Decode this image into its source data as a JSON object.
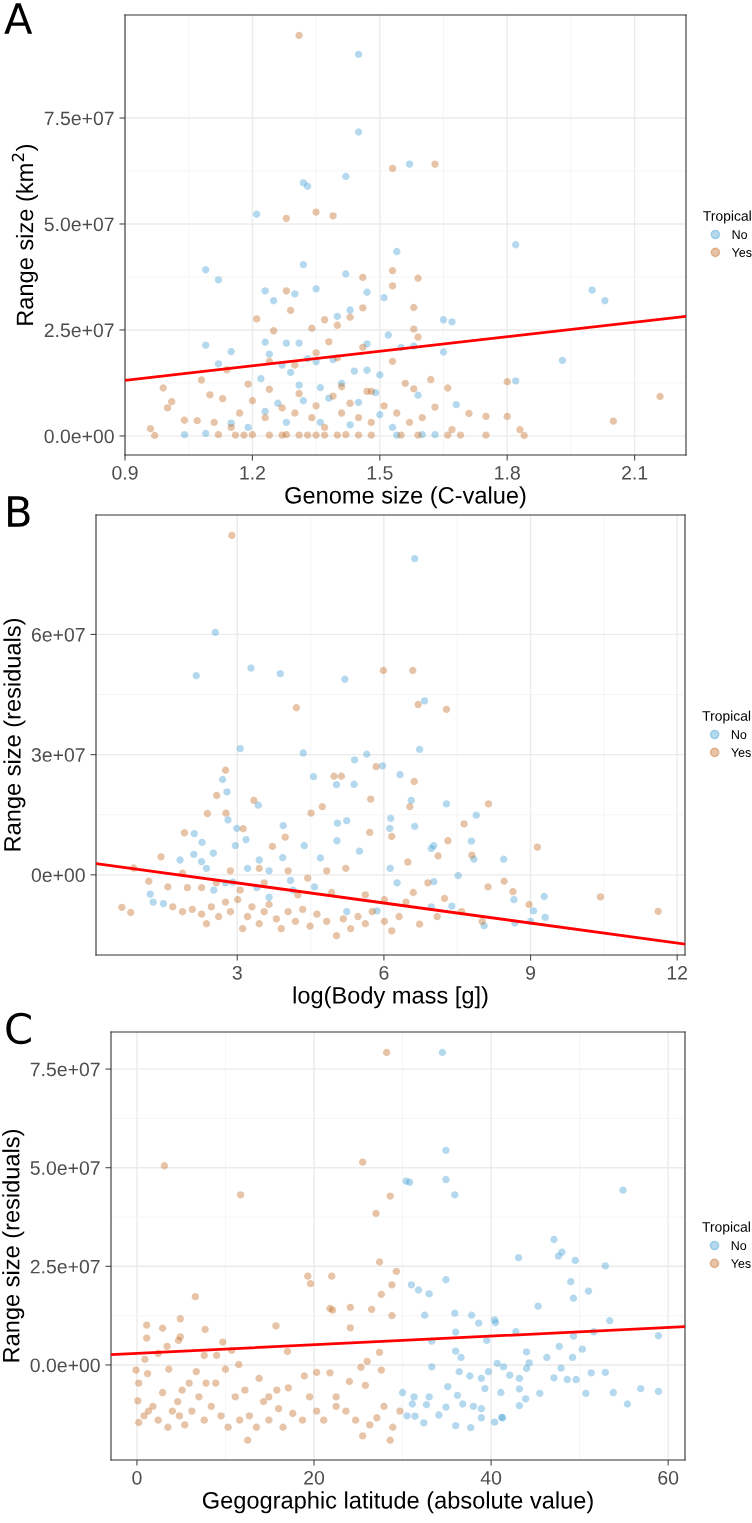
{
  "chart_data": [
    {
      "type": "scatter",
      "annotations": [
        "A"
      ],
      "xlabel": "Genome size (C-value)",
      "ylabel": "Range size (km$^{2}$)",
      "legend_title": "Tropical",
      "legend": "right",
      "grid": true,
      "marker": "circle",
      "xlim": [
        0.9,
        2.221
      ],
      "xticks": [
        0.9,
        1.2,
        1.5,
        1.8,
        2.1
      ],
      "ylim": [
        -4500000,
        99300000
      ],
      "yticks": [
        {
          "value": 0,
          "label": "0.0e+00"
        },
        {
          "value": 25000000,
          "label": "2.5e+07"
        },
        {
          "value": 50000000,
          "label": "5.0e+07"
        },
        {
          "value": 75000000,
          "label": "7.5e+07"
        }
      ],
      "series": [
        {
          "name": "No",
          "color": "#3a9bd1",
          "x": [
            1.45,
            1.45,
            1.57,
            1.42,
            1.32,
            1.33,
            1.21,
            1.82,
            1.54,
            1.32,
            1.09,
            1.12,
            1.42,
            1.23,
            1.3,
            1.35,
            2.0,
            2.03,
            1.25,
            1.47,
            1.51,
            1.43,
            1.4,
            1.65,
            1.67,
            1.52,
            1.23,
            1.28,
            1.31,
            1.09,
            1.47,
            1.15,
            1.55,
            1.58,
            1.65,
            1.93,
            1.12,
            1.24,
            1.35,
            1.82,
            1.59,
            1.68,
            1.22,
            1.27,
            1.29,
            1.31,
            1.33,
            1.36,
            1.39,
            1.41,
            1.44,
            1.47,
            1.49,
            1.5,
            1.23,
            1.26,
            1.32,
            1.38,
            1.45,
            1.5,
            1.15,
            1.19,
            1.28,
            1.36,
            1.43,
            1.53,
            1.04,
            1.09,
            1.63,
            1.54,
            1.6
          ],
          "values": [
            90000000,
            71700000,
            64100000,
            61200000,
            59700000,
            58900000,
            52300000,
            45100000,
            43500000,
            40400000,
            39200000,
            36800000,
            38200000,
            34200000,
            33500000,
            34700000,
            34400000,
            31900000,
            31900000,
            33900000,
            32600000,
            29700000,
            28200000,
            27400000,
            26900000,
            23800000,
            22100000,
            21900000,
            21900000,
            21400000,
            21700000,
            19900000,
            20900000,
            21200000,
            19800000,
            17800000,
            17000000,
            19300000,
            17500000,
            13000000,
            9600000,
            7400000,
            13500000,
            16700000,
            15000000,
            12000000,
            18200000,
            11400000,
            18000000,
            12400000,
            15300000,
            15500000,
            10200000,
            14400000,
            5800000,
            7700000,
            8300000,
            8900000,
            7900000,
            5000000,
            3000000,
            2000000,
            3200000,
            3200000,
            2600000,
            2000000,
            300000,
            600000,
            300000,
            200000,
            300000
          ]
        },
        {
          "name": "Yes",
          "color": "#c06418",
          "x": [
            1.31,
            1.63,
            1.53,
            1.35,
            1.39,
            1.28,
            1.53,
            1.59,
            1.46,
            1.28,
            1.53,
            1.58,
            1.29,
            1.46,
            1.21,
            1.37,
            1.4,
            1.43,
            1.34,
            1.58,
            1.25,
            1.59,
            1.38,
            1.46,
            1.08,
            1.8,
            1.62,
            0.99,
            1.66,
            1.56,
            1.58,
            1.01,
            1.1,
            2.16,
            1.0,
            1.71,
            1.75,
            1.8,
            2.05,
            1.83,
            1.84,
            1.75,
            0.97,
            0.96,
            1.04,
            1.07,
            1.12,
            1.16,
            1.18,
            1.2,
            1.24,
            1.27,
            1.28,
            1.31,
            1.33,
            1.35,
            1.37,
            1.4,
            1.42,
            1.45,
            1.48,
            1.55,
            1.59,
            1.66,
            1.69,
            1.13,
            1.17,
            1.2,
            1.23,
            1.24,
            1.27,
            1.3,
            1.31,
            1.34,
            1.35,
            1.37,
            1.39,
            1.41,
            1.43,
            1.45,
            1.47,
            1.48,
            1.51,
            1.54,
            1.57,
            1.6,
            1.63,
            1.67,
            1.15,
            1.11,
            1.14,
            1.19,
            1.24,
            1.3,
            1.35,
            1.4,
            1.41,
            1.48,
            1.53
          ],
          "values": [
            94500000,
            64100000,
            63100000,
            52800000,
            51900000,
            51300000,
            39000000,
            37200000,
            37400000,
            34200000,
            35400000,
            30300000,
            29600000,
            30200000,
            27600000,
            27400000,
            26100000,
            28000000,
            25400000,
            25200000,
            24800000,
            23300000,
            22200000,
            20900000,
            13200000,
            12800000,
            13300000,
            11300000,
            11300000,
            12400000,
            11100000,
            8100000,
            9700000,
            9300000,
            6600000,
            5300000,
            4600000,
            4600000,
            3500000,
            1500000,
            100000,
            200000,
            100000,
            1700000,
            3700000,
            3600000,
            300000,
            200000,
            200000,
            300000,
            200000,
            200000,
            300000,
            200000,
            200000,
            200000,
            200000,
            200000,
            300000,
            200000,
            200000,
            200000,
            200000,
            200000,
            200000,
            8800000,
            5400000,
            8300000,
            4300000,
            11000000,
            6600000,
            5400000,
            10000000,
            4300000,
            7100000,
            2000000,
            9400000,
            5400000,
            7700000,
            4300000,
            10500000,
            3200000,
            7100000,
            5400000,
            3200000,
            4300000,
            6800000,
            1500000,
            2000000,
            3200000,
            15600000,
            12200000,
            17600000,
            16700000,
            19600000,
            18400000,
            11600000,
            10500000,
            17600000
          ]
        },
        {
          "type": "line",
          "color": "#ff0000",
          "x": [
            0.9,
            2.221
          ],
          "values": [
            13100000,
            28200000
          ],
          "marker": "none"
        }
      ]
    },
    {
      "type": "scatter",
      "annotations": [
        "B"
      ],
      "xlabel": "log(Body mass [g])",
      "ylabel": "Range size (residuals)",
      "legend_title": "Tropical",
      "legend": "right",
      "grid": true,
      "marker": "circle",
      "xlim": [
        0.11,
        12.16
      ],
      "xticks": [
        3,
        6,
        9,
        12
      ],
      "ylim": [
        -20000000,
        89800000
      ],
      "yticks": [
        {
          "value": 0,
          "label": "0e+00"
        },
        {
          "value": 30000000,
          "label": "3e+07"
        },
        {
          "value": 60000000,
          "label": "6e+07"
        }
      ],
      "series": [
        {
          "name": "No",
          "color": "#3a9bd1",
          "x": [
            6.63,
            2.55,
            3.28,
            3.88,
            2.16,
            5.2,
            6.83,
            3.06,
            4.35,
            6.73,
            5.65,
            5.4,
            5.97,
            6.33,
            4.56,
            5.03,
            5.39,
            2.79,
            2.7,
            6.56,
            7.28,
            3.43,
            7.89,
            6.14,
            5.05,
            5.24,
            2.81,
            3.94,
            2.99,
            6.63,
            6.12,
            2.12,
            7.79,
            5.04,
            3.18,
            2.28,
            2.96,
            7.02,
            4.37,
            6.97,
            5.5,
            8.45,
            7.84,
            4.7,
            3.93,
            1.83,
            2.11,
            2.51,
            6.13,
            7.52,
            6.27,
            7.02,
            9.28,
            8.66,
            9.06,
            9.3,
            8.68,
            8.05,
            9.0,
            7.39,
            6.97,
            5.24,
            5.86,
            1.22,
            1.28,
            1.49,
            2.76,
            2.91,
            3.4,
            3.65,
            4.14,
            4.58,
            2.52,
            2.27,
            2.37,
            3.21,
            3.45,
            3.65,
            4.09
          ],
          "values": [
            78900000,
            60500000,
            51600000,
            50200000,
            49700000,
            48800000,
            43400000,
            31500000,
            30400000,
            31300000,
            30100000,
            28700000,
            27200000,
            25000000,
            24500000,
            22500000,
            22600000,
            20700000,
            23800000,
            18600000,
            17700000,
            17400000,
            14900000,
            14100000,
            12900000,
            13500000,
            13700000,
            12300000,
            11600000,
            12100000,
            11600000,
            10300000,
            8400000,
            8500000,
            8800000,
            8100000,
            7300000,
            7300000,
            7300000,
            6600000,
            5900000,
            3900000,
            3900000,
            4200000,
            4300000,
            3700000,
            5100000,
            5400000,
            1600000,
            -200000,
            -2000000,
            -1700000,
            -5400000,
            -6200000,
            -9000000,
            -10600000,
            -12000000,
            -12700000,
            -11600000,
            -7800000,
            -8000000,
            -9200000,
            -9000000,
            -4800000,
            -6800000,
            -7200000,
            -2000000,
            -1800000,
            -3200000,
            -5600000,
            -3800000,
            -3000000,
            -3800000,
            3300000,
            1600000,
            1600000,
            3700000,
            1000000,
            -1400000
          ]
        },
        {
          "name": "Yes",
          "color": "#c06418",
          "x": [
            2.89,
            5.99,
            6.59,
            4.21,
            6.7,
            7.28,
            2.76,
            5.84,
            4.98,
            5.13,
            6.62,
            2.58,
            3.34,
            5.73,
            8.14,
            4.74,
            6.53,
            2.39,
            4.51,
            2.77,
            7.64,
            5.71,
            3.12,
            1.92,
            6.16,
            3.98,
            7.31,
            9.14,
            7.11,
            3.72,
            7.8,
            6.49,
            1.44,
            0.88,
            10.43,
            11.61,
            8.97,
            8.13,
            8.46,
            8.64,
            0.64,
            0.82,
            1.19,
            1.58,
            1.88,
            1.98,
            1.68,
            1.88,
            2.08,
            2.27,
            2.37,
            2.47,
            2.62,
            2.76,
            2.86,
            3.01,
            3.11,
            3.21,
            3.3,
            3.45,
            3.55,
            3.65,
            3.8,
            3.9,
            4.04,
            4.19,
            4.34,
            4.49,
            4.63,
            4.83,
            5.03,
            5.17,
            5.32,
            5.47,
            5.62,
            5.76,
            6.01,
            6.16,
            6.31,
            6.45,
            6.73,
            6.9,
            7.09,
            7.24,
            7.59,
            8.01,
            5.22,
            4.83,
            4.44,
            4.04,
            3.45,
            2.86,
            2.27,
            2.57,
            3.06,
            3.55,
            4.24,
            4.93,
            5.62,
            6.01,
            6.6
          ],
          "values": [
            84700000,
            51000000,
            51000000,
            41700000,
            42500000,
            41300000,
            26100000,
            27000000,
            24600000,
            24600000,
            23300000,
            19800000,
            18600000,
            18900000,
            17700000,
            17000000,
            17000000,
            15300000,
            15400000,
            15400000,
            12700000,
            10600000,
            11500000,
            10500000,
            9600000,
            9400000,
            8500000,
            6900000,
            4700000,
            7100000,
            4900000,
            3200000,
            4500000,
            1700000,
            -5500000,
            -9100000,
            -7400000,
            -3000000,
            -1600000,
            -4200000,
            -8100000,
            -9400000,
            -1600000,
            -3000000,
            400000,
            -3200000,
            -8000000,
            -9200000,
            -8600000,
            -9800000,
            -12200000,
            -8000000,
            -10400000,
            -6800000,
            -9200000,
            -6200000,
            -13400000,
            -10400000,
            -8000000,
            -12200000,
            -9200000,
            -7400000,
            -11000000,
            -13400000,
            -9200000,
            -11600000,
            -8600000,
            -12800000,
            -9800000,
            -11600000,
            -15200000,
            -11000000,
            -13400000,
            -10400000,
            -12200000,
            -9200000,
            -11600000,
            -14000000,
            -10400000,
            -6800000,
            -12300000,
            -2000000,
            -10400000,
            -5900000,
            -9200000,
            -11600000,
            1600000,
            1000000,
            -800000,
            1000000,
            1600000,
            1000000,
            -3200000,
            -2000000,
            -3800000,
            -2000000,
            -5000000,
            -4400000,
            -5000000,
            -6200000,
            -4400000
          ]
        },
        {
          "type": "line",
          "color": "#ff0000",
          "x": [
            0.11,
            12.16
          ],
          "values": [
            2800000,
            -17300000
          ],
          "marker": "none"
        }
      ]
    },
    {
      "type": "scatter",
      "annotations": [
        "C"
      ],
      "xlabel": "Gegographic latitude (absolute value)",
      "ylabel": "Range size (residuals)",
      "legend_title": "Tropical",
      "legend": "right",
      "grid": true,
      "marker": "circle",
      "xlim": [
        -2.93,
        61.9
      ],
      "xticks": [
        0,
        20,
        40,
        60
      ],
      "ylim": [
        -24100000,
        84400000
      ],
      "yticks": [
        {
          "value": 0,
          "label": "0.0e+00"
        },
        {
          "value": 25000000,
          "label": "2.5e+07"
        },
        {
          "value": 50000000,
          "label": "5.0e+07"
        },
        {
          "value": 75000000,
          "label": "7.5e+07"
        }
      ],
      "series": [
        {
          "name": "No",
          "color": "#3a9bd1",
          "x": [
            34.5,
            34.9,
            34.9,
            30.4,
            30.8,
            35.9,
            54.9,
            47.1,
            43.1,
            47.6,
            48.0,
            49.5,
            52.9,
            34.9,
            49.0,
            31.0,
            31.8,
            33.0,
            51.0,
            49.3,
            45.3,
            35.9,
            37.8,
            32.5,
            40.4,
            40.5,
            53.4,
            38.6,
            51.6,
            36.0,
            42.8,
            58.9,
            49.3,
            39.5,
            33.3,
            47.7,
            50.3,
            44.0,
            36.0,
            36.6,
            46.3,
            49.2,
            40.7,
            44.3,
            33.3,
            41.4,
            47.9,
            44.0,
            36.4,
            39.7,
            42.1,
            51.3,
            52.9,
            47.1,
            48.6,
            49.6,
            43.2,
            38.9,
            37.6,
            56.9,
            58.9,
            53.8,
            50.7,
            45.5,
            43.2,
            41.1,
            39.3,
            35.1,
            36.2,
            30.0,
            31.3,
            33.0,
            31.1,
            32.7,
            34.9,
            36.8,
            38.0,
            38.9,
            43.2,
            43.9,
            55.4,
            30.5,
            31.4,
            34.1,
            41.2,
            38.9,
            32.4,
            36.0,
            37.7,
            40.4,
            41.3
          ],
          "values": [
            79200000,
            54400000,
            47000000,
            46600000,
            46300000,
            43100000,
            44300000,
            31800000,
            27200000,
            27600000,
            28600000,
            26500000,
            25100000,
            21600000,
            21100000,
            20300000,
            19000000,
            18000000,
            18700000,
            16900000,
            14900000,
            13100000,
            12600000,
            12600000,
            11400000,
            10700000,
            11200000,
            10600000,
            8400000,
            8300000,
            8400000,
            7400000,
            7300000,
            6200000,
            6000000,
            4700000,
            4000000,
            3300000,
            3500000,
            1900000,
            1900000,
            1900000,
            400000,
            500000,
            -500000,
            -500000,
            -800000,
            -900000,
            -1700000,
            -1700000,
            -2600000,
            -2000000,
            -1900000,
            -3300000,
            -3700000,
            -3700000,
            -3400000,
            -3400000,
            -2800000,
            -6000000,
            -6700000,
            -7000000,
            -7200000,
            -7200000,
            -6100000,
            -7000000,
            -6000000,
            -5500000,
            -7700000,
            -7000000,
            -8100000,
            -8100000,
            -9900000,
            -10100000,
            -10700000,
            -9900000,
            -10500000,
            -11100000,
            -10300000,
            -8600000,
            -9900000,
            -12900000,
            -13000000,
            -12700000,
            -13300000,
            -13400000,
            -14700000,
            -15400000,
            -15900000,
            -14500000,
            -13400000
          ]
        },
        {
          "name": "Yes",
          "color": "#c06418",
          "x": [
            28.2,
            3.1,
            25.5,
            11.7,
            28.6,
            27.0,
            27.4,
            29.3,
            19.3,
            22.0,
            19.6,
            28.8,
            27.6,
            6.6,
            21.8,
            22.1,
            24.1,
            26.5,
            28.8,
            4.9,
            1.1,
            15.7,
            2.9,
            7.7,
            24.1,
            1.1,
            4.9,
            4.7,
            9.7,
            3.4,
            10.7,
            17.0,
            27.4,
            2.4,
            7.6,
            9.0,
            0.9,
            26.0,
            -0.1,
            11.5,
            25.3,
            20.3,
            21.8,
            27.6,
            24.0,
            25.8,
            18.9,
            15.8,
            0.2,
            0.1,
            0.2,
            0.8,
            1.3,
            1.8,
            2.4,
            2.9,
            3.5,
            4.0,
            4.6,
            4.8,
            5.4,
            5.9,
            6.2,
            7.0,
            7.6,
            8.4,
            8.9,
            9.5,
            10.3,
            11.1,
            11.6,
            12.5,
            12.7,
            13.5,
            14.3,
            14.9,
            16.0,
            16.5,
            17.6,
            18.7,
            19.5,
            20.3,
            21.1,
            22.5,
            23.6,
            24.7,
            25.5,
            26.3,
            27.1,
            27.9,
            28.6,
            28.9,
            29.7,
            1.2,
            3.6,
            6.7,
            10.0,
            13.8,
            17.1,
            22.5,
            5.1,
            7.8,
            12.2,
            14.9
          ],
          "values": [
            79200000,
            50500000,
            51400000,
            43100000,
            42800000,
            38400000,
            26100000,
            23700000,
            22500000,
            22500000,
            20600000,
            20300000,
            17900000,
            17300000,
            14300000,
            13900000,
            14600000,
            14100000,
            12500000,
            11700000,
            10100000,
            9900000,
            9300000,
            9000000,
            9400000,
            6800000,
            7100000,
            6200000,
            5800000,
            4700000,
            3700000,
            3400000,
            3200000,
            2900000,
            2400000,
            2400000,
            1400000,
            900000,
            -1300000,
            100000,
            -600000,
            -1900000,
            -2000000,
            -1300000,
            -4200000,
            -5200000,
            -2800000,
            -6400000,
            -4600000,
            -9100000,
            -14600000,
            -12900000,
            -11700000,
            -10500000,
            -14000000,
            -7000000,
            -15800000,
            -11700000,
            -9300000,
            -12900000,
            -15200000,
            -4600000,
            -11700000,
            -8100000,
            -14000000,
            -10500000,
            -4600000,
            -12900000,
            -15800000,
            -8100000,
            -14000000,
            -19100000,
            -12900000,
            -15800000,
            -9300000,
            -14000000,
            -11100000,
            -15800000,
            -12300000,
            -14000000,
            -8100000,
            -11700000,
            -14000000,
            -10500000,
            -11700000,
            -14000000,
            -18000000,
            -15200000,
            -13400000,
            -10500000,
            -19100000,
            -15800000,
            -11700000,
            -2200000,
            -1100000,
            -1700000,
            -1100000,
            -3400000,
            -5800000,
            -8100000,
            -6400000,
            -4600000,
            -6400000,
            -8100000
          ]
        },
        {
          "type": "line",
          "color": "#ff0000",
          "x": [
            -2.93,
            61.9
          ],
          "values": [
            2600000,
            9700000
          ],
          "marker": "none"
        }
      ]
    }
  ]
}
